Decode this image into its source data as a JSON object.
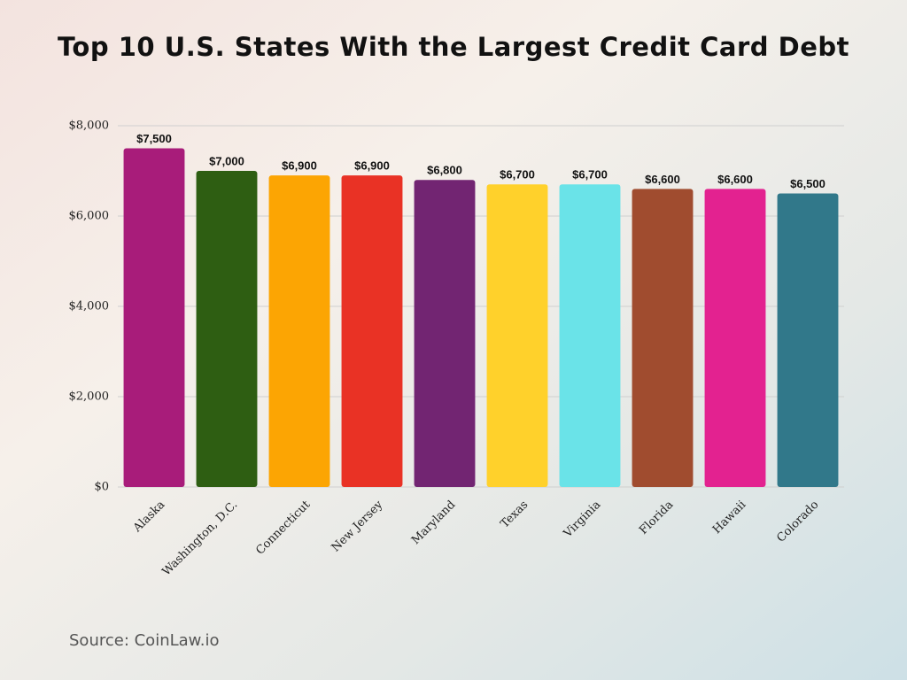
{
  "chart_data": {
    "type": "bar",
    "title": "Top 10 U.S. States With the Largest Credit Card Debt",
    "categories": [
      "Alaska",
      "Washington, D.C.",
      "Connecticut",
      "New Jersey",
      "Maryland",
      "Texas",
      "Virginia",
      "Florida",
      "Hawaii",
      "Colorado"
    ],
    "values": [
      7500,
      7000,
      6900,
      6900,
      6800,
      6700,
      6700,
      6600,
      6600,
      6500
    ],
    "value_labels": [
      "$7,500",
      "$7,000",
      "$6,900",
      "$6,900",
      "$6,800",
      "$6,700",
      "$6,700",
      "$6,600",
      "$6,600",
      "$6,500"
    ],
    "colors": [
      "#a81c7a",
      "#2e5e12",
      "#fca503",
      "#e93225",
      "#722572",
      "#ffd12b",
      "#6ae3e8",
      "#a04c2f",
      "#e32290",
      "#31788a"
    ],
    "ylim": [
      0,
      8000
    ],
    "yticks": [
      {
        "value": 0,
        "label": "$0"
      },
      {
        "value": 2000,
        "label": "$2,000"
      },
      {
        "value": 4000,
        "label": "$4,000"
      },
      {
        "value": 6000,
        "label": "$6,000"
      },
      {
        "value": 8000,
        "label": "$8,000"
      }
    ],
    "grid": true,
    "source": "Source: CoinLaw.io"
  }
}
